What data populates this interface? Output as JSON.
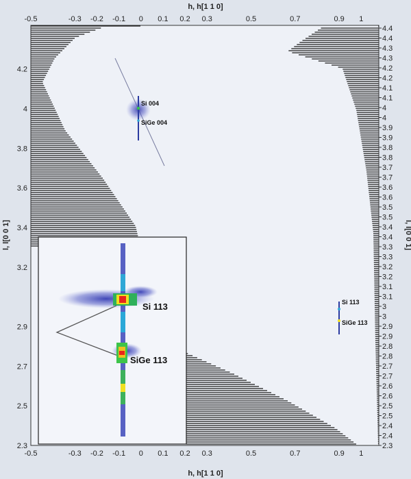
{
  "chart_data": {
    "type": "heatmap",
    "title": "",
    "xlabel": "h, h[1 1 0]",
    "ylabel": "l, l[0 0 1]",
    "xlim": [
      -0.5,
      1.08
    ],
    "ylim": [
      2.3,
      4.42
    ],
    "x_ticks": [
      "-0.5",
      "-0.3",
      "-0.2",
      "-0.1",
      "0",
      "0.1",
      "0.2",
      "0.3",
      "0.5",
      "0.7",
      "0.9",
      "1"
    ],
    "y_ticks_left": [
      "2.3",
      "2.5",
      "2.7",
      "2.9",
      "3.2",
      "3.4",
      "3.6",
      "3.8",
      "4",
      "4.2"
    ],
    "y_ticks_right": [
      "2.3",
      "2.4",
      "2.4",
      "2.5",
      "2.5",
      "2.6",
      "2.6",
      "2.7",
      "2.7",
      "2.8",
      "2.8",
      "2.9",
      "2.9",
      "3",
      "3",
      "3.1",
      "3.1",
      "3.2",
      "3.2",
      "3.3",
      "3.3",
      "3.4",
      "3.4",
      "3.5",
      "3.5",
      "3.6",
      "3.6",
      "3.7",
      "3.7",
      "3.8",
      "3.8",
      "3.9",
      "3.9",
      "4",
      "4",
      "4.1",
      "4.1",
      "4.2",
      "4.2",
      "4.3",
      "4.3",
      "4.4",
      "4.4"
    ],
    "peaks": [
      {
        "label": "Si 004",
        "h": 0.0,
        "l": 4.0
      },
      {
        "label": "SiGe 004",
        "h": 0.0,
        "l": 3.93
      },
      {
        "label": "Si 113",
        "h": 0.97,
        "l": 2.97
      },
      {
        "label": "SiGe 113",
        "h": 0.97,
        "l": 2.9
      }
    ],
    "inset": {
      "labels": {
        "si113": "Si 113",
        "sige113": "SiGe 113"
      }
    },
    "colors": {
      "background": "#eef1f7",
      "shading": "#1a1a1a",
      "intensity_scale": [
        "#3b3fb0",
        "#2aa8d8",
        "#3ec44a",
        "#f2e520",
        "#e8261b"
      ]
    }
  }
}
